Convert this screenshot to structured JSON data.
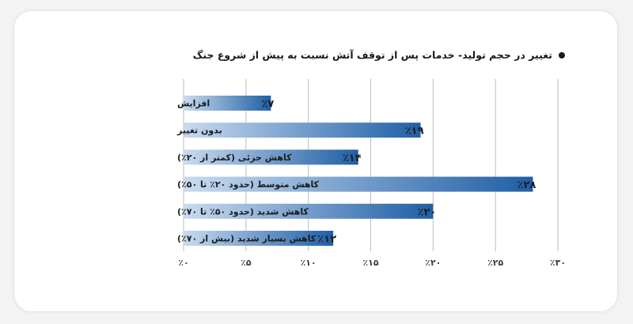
{
  "chart_data": {
    "type": "bar",
    "orientation": "horizontal",
    "title": "تغییر در حجم تولید- خدمات پس از توقف آتش نسبت به پیش از شروع جنگ",
    "categories": [
      "افزایش",
      "بدون تغییر",
      "کاهش جزئی (کمتر از ۲۰٪)",
      "کاهش متوسط (حدود ۲۰٪ تا ۵۰٪)",
      "کاهش شدید (حدود ۵۰٪ تا ۷۰٪)",
      "کاهش بسیار شدید (بیش از ۷۰٪)"
    ],
    "values": [
      7,
      19,
      14,
      28,
      20,
      12
    ],
    "value_labels": [
      "٪۷",
      "٪۱۹",
      "٪۱۴",
      "٪۲۸",
      "٪۲۰",
      "٪۱۲"
    ],
    "xlim": [
      0,
      30
    ],
    "xticks": [
      0,
      5,
      10,
      15,
      20,
      25,
      30
    ],
    "xtick_labels": [
      "٪۰",
      "٪۵",
      "٪۱۰",
      "٪۱۵",
      "٪۲۰",
      "٪۲۵",
      "٪۳۰"
    ],
    "grid": true,
    "bar_gradient": [
      "#c9dbf0",
      "#1f5fa5"
    ]
  }
}
